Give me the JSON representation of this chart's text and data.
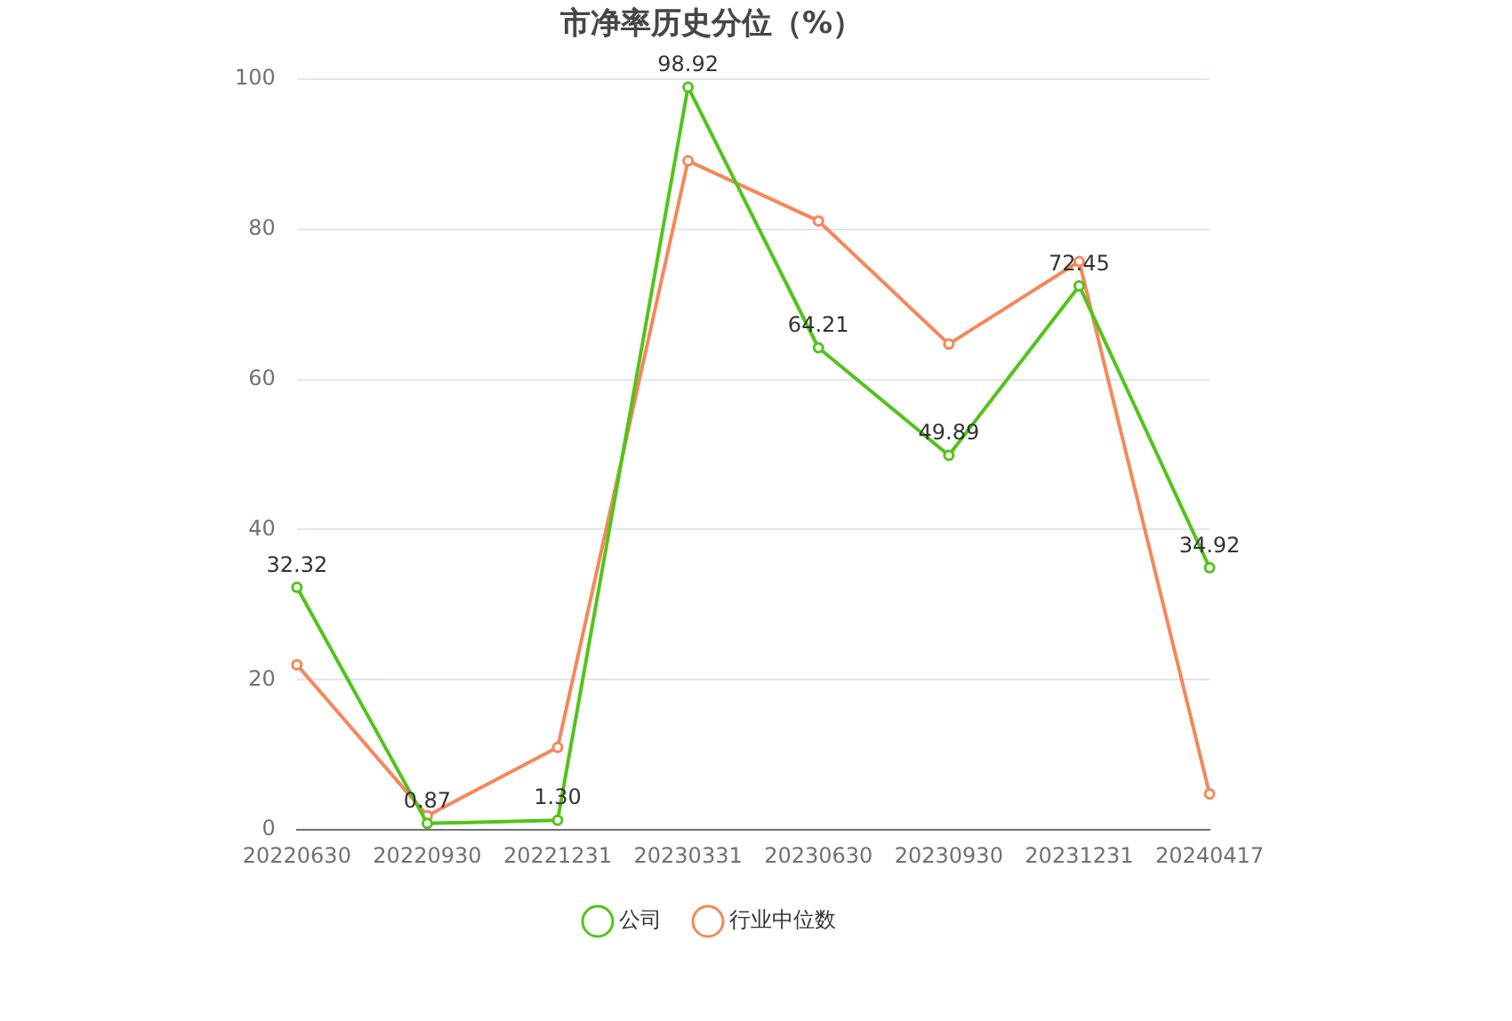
{
  "chart_data": {
    "type": "line",
    "title": "市净率历史分位（%）",
    "categories": [
      "20220630",
      "20220930",
      "20221231",
      "20230331",
      "20230630",
      "20230930",
      "20231231",
      "20240417"
    ],
    "series": [
      {
        "name": "公司",
        "color": "#52c41a",
        "values": [
          32.32,
          0.87,
          1.3,
          98.92,
          64.21,
          49.89,
          72.45,
          34.92
        ],
        "value_labels": [
          "32.32",
          "0.87",
          "1.30",
          "98.92",
          "64.21",
          "49.89",
          "72.45",
          "34.92"
        ]
      },
      {
        "name": "行业中位数",
        "color": "#f5875a",
        "values": [
          22.0,
          1.9,
          11.0,
          89.1,
          81.1,
          64.7,
          75.7,
          4.8
        ]
      }
    ],
    "ylim": [
      0,
      100
    ],
    "yticks": [
      0,
      20,
      40,
      60,
      80,
      100
    ],
    "grid": "y",
    "legend": "bottom",
    "marker": "circle",
    "line_style": "solid"
  }
}
